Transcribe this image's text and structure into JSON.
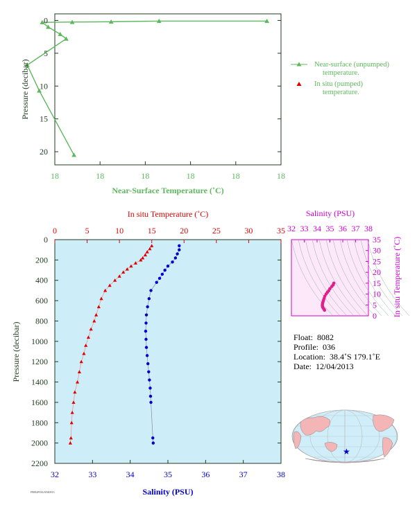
{
  "colors": {
    "green": "#5cb85c",
    "red": "#e00000",
    "blue": "#0000cc",
    "magenta": "#cc00cc",
    "panel_bg": "#cdeef9",
    "axis_dark": "#1f3a1f"
  },
  "chart_data": [
    {
      "id": "near_surface",
      "type": "line",
      "xlabel": "Near-Surface Temperature (˚C)",
      "ylabel": "Pressure (decibar)",
      "x_tick_labels": [
        "18",
        "18",
        "18",
        "18",
        "18",
        "18"
      ],
      "ylim": [
        22,
        -1
      ],
      "y_ticks": [
        0,
        5,
        10,
        15,
        20
      ],
      "series": [
        {
          "name": "Near-surface (unpumped) temperature.",
          "marker": "triangle",
          "points": [
            {
              "x": 18.58,
              "y": 20.5
            },
            {
              "x": 18.0,
              "y": 10.7
            },
            {
              "x": 17.8,
              "y": 6.8
            },
            {
              "x": 18.45,
              "y": 2.8
            },
            {
              "x": 18.35,
              "y": 2.1
            },
            {
              "x": 18.15,
              "y": 1.0
            },
            {
              "x": 18.05,
              "y": 0.3
            },
            {
              "x": 18.55,
              "y": 0.25
            },
            {
              "x": 19.2,
              "y": 0.2
            },
            {
              "x": 20.0,
              "y": 0.1
            },
            {
              "x": 21.8,
              "y": 0.1
            }
          ]
        },
        {
          "name": "In situ (pumped) temperature.",
          "marker": "triangle",
          "points": []
        }
      ]
    },
    {
      "id": "profile",
      "type": "line",
      "top_xlabel": "In situ Temperature (˚C)",
      "bottom_xlabel": "Salinity (PSU)",
      "ylabel": "Pressure (decibar)",
      "temp_range": [
        0,
        35
      ],
      "temp_ticks": [
        0,
        5,
        10,
        15,
        20,
        25,
        30,
        35
      ],
      "sal_range": [
        32,
        38
      ],
      "sal_ticks": [
        32,
        33,
        34,
        35,
        36,
        37,
        38
      ],
      "ylim": [
        2200,
        0
      ],
      "y_ticks": [
        0,
        200,
        400,
        600,
        800,
        1000,
        1200,
        1400,
        1600,
        1800,
        2000,
        2200
      ],
      "temperature": [
        {
          "p": 60,
          "t": 15.0
        },
        {
          "p": 90,
          "t": 14.7
        },
        {
          "p": 120,
          "t": 14.3
        },
        {
          "p": 150,
          "t": 14.0
        },
        {
          "p": 180,
          "t": 13.6
        },
        {
          "p": 200,
          "t": 13.3
        },
        {
          "p": 230,
          "t": 12.5
        },
        {
          "p": 260,
          "t": 11.8
        },
        {
          "p": 290,
          "t": 11.2
        },
        {
          "p": 320,
          "t": 10.6
        },
        {
          "p": 360,
          "t": 10.0
        },
        {
          "p": 400,
          "t": 9.3
        },
        {
          "p": 450,
          "t": 8.5
        },
        {
          "p": 500,
          "t": 7.8
        },
        {
          "p": 580,
          "t": 7.2
        },
        {
          "p": 660,
          "t": 6.8
        },
        {
          "p": 740,
          "t": 6.4
        },
        {
          "p": 800,
          "t": 6.1
        },
        {
          "p": 880,
          "t": 5.6
        },
        {
          "p": 960,
          "t": 5.2
        },
        {
          "p": 1040,
          "t": 4.8
        },
        {
          "p": 1120,
          "t": 4.5
        },
        {
          "p": 1200,
          "t": 4.1
        },
        {
          "p": 1300,
          "t": 3.8
        },
        {
          "p": 1400,
          "t": 3.5
        },
        {
          "p": 1500,
          "t": 3.1
        },
        {
          "p": 1600,
          "t": 2.9
        },
        {
          "p": 1700,
          "t": 2.7
        },
        {
          "p": 1800,
          "t": 2.6
        },
        {
          "p": 1950,
          "t": 2.5
        },
        {
          "p": 2000,
          "t": 2.4
        }
      ],
      "salinity": [
        {
          "p": 60,
          "s": 35.3
        },
        {
          "p": 100,
          "s": 35.3
        },
        {
          "p": 140,
          "s": 35.25
        },
        {
          "p": 180,
          "s": 35.2
        },
        {
          "p": 220,
          "s": 35.12
        },
        {
          "p": 260,
          "s": 35.0
        },
        {
          "p": 300,
          "s": 34.92
        },
        {
          "p": 340,
          "s": 34.85
        },
        {
          "p": 380,
          "s": 34.78
        },
        {
          "p": 420,
          "s": 34.7
        },
        {
          "p": 500,
          "s": 34.55
        },
        {
          "p": 580,
          "s": 34.5
        },
        {
          "p": 660,
          "s": 34.46
        },
        {
          "p": 740,
          "s": 34.43
        },
        {
          "p": 820,
          "s": 34.42
        },
        {
          "p": 900,
          "s": 34.41
        },
        {
          "p": 980,
          "s": 34.42
        },
        {
          "p": 1060,
          "s": 34.43
        },
        {
          "p": 1140,
          "s": 34.45
        },
        {
          "p": 1220,
          "s": 34.47
        },
        {
          "p": 1300,
          "s": 34.49
        },
        {
          "p": 1380,
          "s": 34.51
        },
        {
          "p": 1460,
          "s": 34.53
        },
        {
          "p": 1540,
          "s": 34.54
        },
        {
          "p": 1600,
          "s": 34.55
        },
        {
          "p": 1950,
          "s": 34.6
        },
        {
          "p": 2000,
          "s": 34.61
        }
      ]
    },
    {
      "id": "ts_diagram",
      "type": "scatter",
      "xlabel": "Salinity (PSU)",
      "ylabel": "In situ Temperature (˚C)",
      "x_range": [
        32,
        38
      ],
      "x_ticks": [
        32,
        33,
        34,
        35,
        36,
        37,
        38
      ],
      "y_range": [
        0,
        35
      ],
      "y_ticks": [
        0,
        5,
        10,
        15,
        20,
        25,
        30,
        35
      ],
      "points": [
        {
          "s": 35.3,
          "t": 15.0
        },
        {
          "s": 35.25,
          "t": 14.2
        },
        {
          "s": 35.15,
          "t": 13.5
        },
        {
          "s": 35.0,
          "t": 12.5
        },
        {
          "s": 34.9,
          "t": 11.5
        },
        {
          "s": 34.8,
          "t": 10.8
        },
        {
          "s": 34.7,
          "t": 10.0
        },
        {
          "s": 34.6,
          "t": 9.0
        },
        {
          "s": 34.55,
          "t": 8.0
        },
        {
          "s": 34.5,
          "t": 7.2
        },
        {
          "s": 34.47,
          "t": 6.6
        },
        {
          "s": 34.44,
          "t": 6.0
        },
        {
          "s": 34.42,
          "t": 5.4
        },
        {
          "s": 34.41,
          "t": 4.8
        },
        {
          "s": 34.42,
          "t": 4.2
        },
        {
          "s": 34.45,
          "t": 3.8
        },
        {
          "s": 34.5,
          "t": 3.4
        },
        {
          "s": 34.55,
          "t": 3.0
        },
        {
          "s": 34.58,
          "t": 2.6
        }
      ]
    }
  ],
  "info": {
    "float_label": "Float:",
    "float_value": "8082",
    "profile_label": "Profile:",
    "profile_value": "036",
    "location_label": "Location:",
    "location_value": "38.4˚S  179.1˚E",
    "date_label": "Date:",
    "date_value": "12/04/2013"
  },
  "map": {
    "marker_icon": "star-icon"
  },
  "footer": "F8082P036.8/040913"
}
